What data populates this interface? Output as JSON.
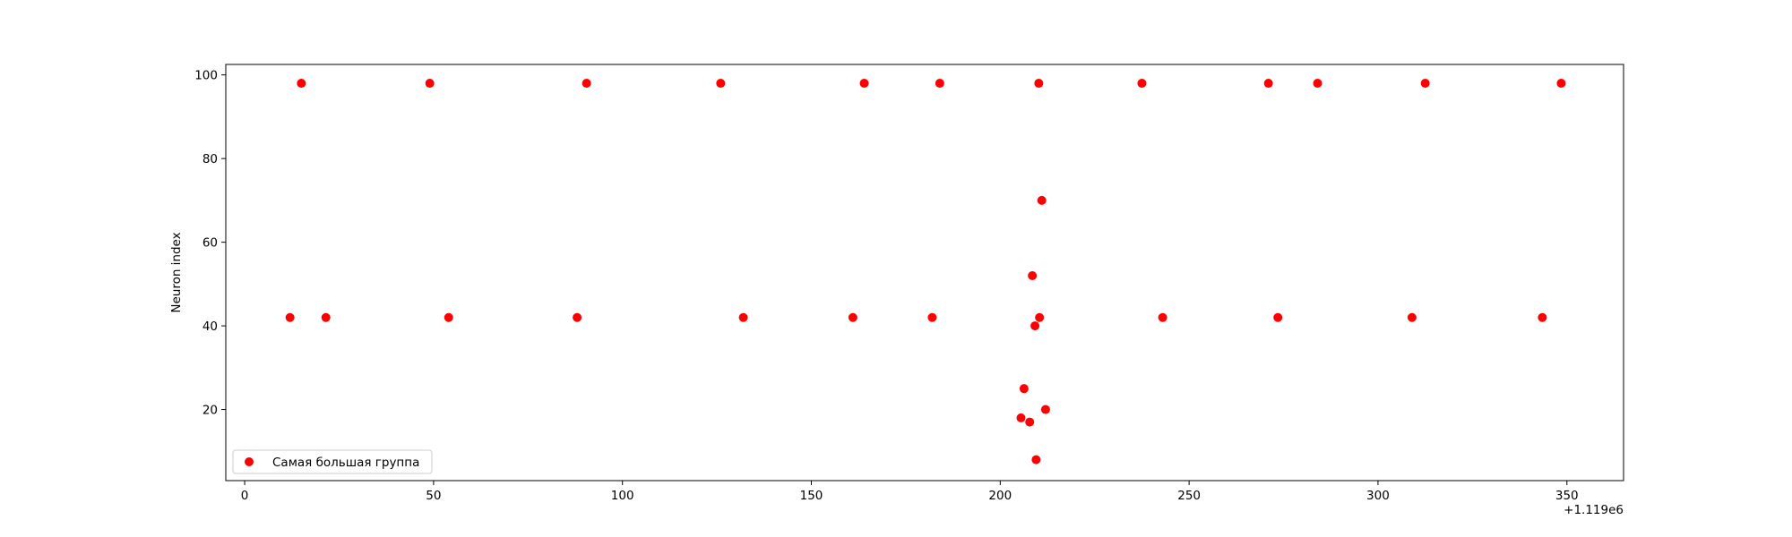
{
  "chart_data": {
    "type": "scatter",
    "title": "",
    "xlabel": "",
    "ylabel": "Neuron index",
    "x_offset_label": "+1.119e6",
    "xlim": [
      -5,
      365
    ],
    "ylim": [
      3,
      102.5
    ],
    "x_ticks": [
      0,
      50,
      100,
      150,
      200,
      250,
      300,
      350
    ],
    "y_ticks": [
      20,
      40,
      60,
      80,
      100
    ],
    "grid": false,
    "legend_position": "lower-left",
    "series": [
      {
        "name": "Самая большая группа",
        "color": "#ff0000",
        "points": [
          {
            "x": 12,
            "y": 42
          },
          {
            "x": 15,
            "y": 98
          },
          {
            "x": 21.5,
            "y": 42
          },
          {
            "x": 49,
            "y": 98
          },
          {
            "x": 54,
            "y": 42
          },
          {
            "x": 88,
            "y": 42
          },
          {
            "x": 90.5,
            "y": 98
          },
          {
            "x": 126,
            "y": 98
          },
          {
            "x": 132,
            "y": 42
          },
          {
            "x": 161,
            "y": 42
          },
          {
            "x": 164,
            "y": 98
          },
          {
            "x": 182,
            "y": 42
          },
          {
            "x": 184,
            "y": 98
          },
          {
            "x": 205.5,
            "y": 18
          },
          {
            "x": 206.3,
            "y": 25
          },
          {
            "x": 207.8,
            "y": 17
          },
          {
            "x": 208.5,
            "y": 52
          },
          {
            "x": 209.2,
            "y": 40
          },
          {
            "x": 209.5,
            "y": 8
          },
          {
            "x": 210.2,
            "y": 98
          },
          {
            "x": 210.4,
            "y": 42
          },
          {
            "x": 211,
            "y": 70
          },
          {
            "x": 212,
            "y": 20
          },
          {
            "x": 237.5,
            "y": 98
          },
          {
            "x": 243,
            "y": 42
          },
          {
            "x": 271,
            "y": 98
          },
          {
            "x": 273.5,
            "y": 42
          },
          {
            "x": 284,
            "y": 98
          },
          {
            "x": 309,
            "y": 42
          },
          {
            "x": 312.5,
            "y": 98
          },
          {
            "x": 343.5,
            "y": 42
          },
          {
            "x": 348.5,
            "y": 98
          }
        ]
      }
    ]
  }
}
